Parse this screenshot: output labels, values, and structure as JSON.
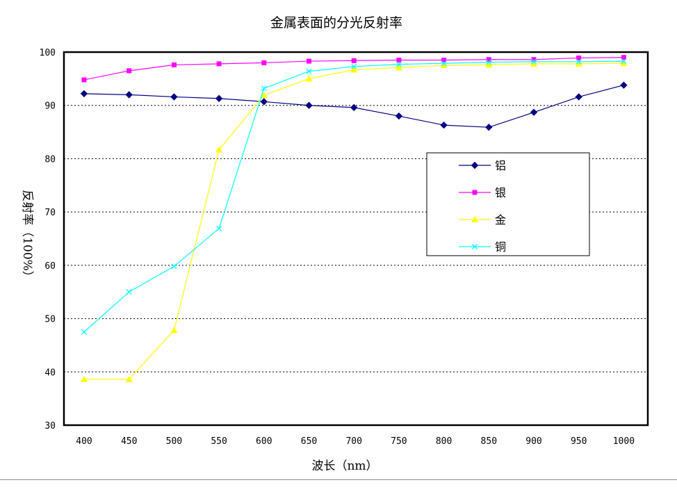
{
  "chart_data": {
    "type": "line",
    "title": "金属表面的分光反射率",
    "xlabel": "波长（nm）",
    "ylabel": "反射率（100%）",
    "x": [
      400,
      450,
      500,
      550,
      600,
      650,
      700,
      750,
      800,
      850,
      900,
      950,
      1000
    ],
    "x_tick_labels": [
      "400",
      "450",
      "500",
      "550",
      "600",
      "650",
      "700",
      "750",
      "800",
      "850",
      "900",
      "950",
      "1000"
    ],
    "y_ticks": [
      30,
      40,
      50,
      60,
      70,
      80,
      90,
      100
    ],
    "y_tick_labels": [
      "30",
      "40",
      "50",
      "60",
      "70",
      "80",
      "90",
      "100"
    ],
    "ylim": [
      30,
      100
    ],
    "grid": "horizontal dotted",
    "legend_position": "right-center",
    "series": [
      {
        "name": "铝",
        "color": "#000080",
        "marker": "diamond",
        "values": [
          92.2,
          92.0,
          91.6,
          91.3,
          90.7,
          90.0,
          89.6,
          88.0,
          86.3,
          85.9,
          88.7,
          91.6,
          93.8
        ]
      },
      {
        "name": "银",
        "color": "#ff00ff",
        "marker": "square",
        "values": [
          94.8,
          96.5,
          97.6,
          97.8,
          98.0,
          98.3,
          98.4,
          98.5,
          98.5,
          98.6,
          98.6,
          98.9,
          99.0
        ]
      },
      {
        "name": "金",
        "color": "#ffff00",
        "marker": "triangle",
        "values": [
          38.6,
          38.6,
          47.8,
          81.7,
          91.9,
          95.0,
          96.7,
          97.1,
          97.5,
          97.6,
          97.8,
          97.8,
          97.9
        ]
      },
      {
        "name": "铜",
        "color": "#00ffff",
        "marker": "x",
        "values": [
          47.5,
          55.0,
          59.8,
          66.9,
          93.2,
          96.4,
          97.3,
          97.7,
          97.9,
          98.1,
          98.2,
          98.2,
          98.3
        ]
      }
    ]
  }
}
